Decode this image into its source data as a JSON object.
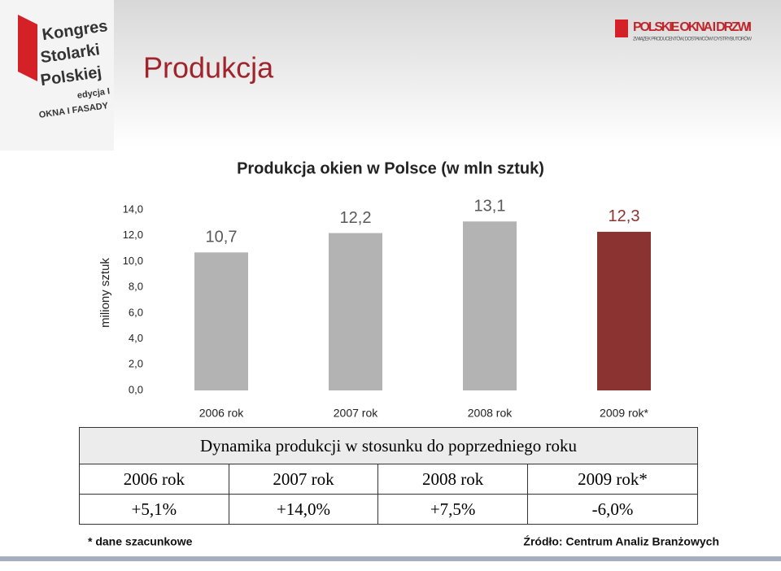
{
  "header": {
    "title": "Produkcja",
    "logo_left": [
      "Kongres",
      "Stolarki",
      "Polskiej",
      "edycja I",
      "OKNA I FASADY"
    ],
    "logo_right": [
      "POLSKIE OKNA I DRZWI",
      "ZWIĄZEK PRODUCENTÓW, DOSTAWCÓW I DYSTRYBUTORÓW"
    ]
  },
  "chart_data": {
    "type": "bar",
    "title": "Produkcja okien w Polsce (w mln sztuk)",
    "y_label": "miliony sztuk",
    "categories": [
      "2006 rok",
      "2007 rok",
      "2008 rok",
      "2009 rok*"
    ],
    "values": [
      10.7,
      12.2,
      13.1,
      12.3
    ],
    "value_labels": [
      "10,7",
      "12,2",
      "13,1",
      "12,3"
    ],
    "colors": [
      "#b3b3b3",
      "#b3b3b3",
      "#b3b3b3",
      "#8b3330"
    ],
    "ylim": [
      0,
      14
    ],
    "yticks": [
      {
        "value": 0,
        "label": "0,0"
      },
      {
        "value": 2,
        "label": "2,0"
      },
      {
        "value": 4,
        "label": "4,0"
      },
      {
        "value": 6,
        "label": "6,0"
      },
      {
        "value": 8,
        "label": "8,0"
      },
      {
        "value": 10,
        "label": "10,0"
      },
      {
        "value": 12,
        "label": "12,0"
      },
      {
        "value": 14,
        "label": "14,0"
      }
    ],
    "grid": false
  },
  "table": {
    "title": "Dynamika produkcji w stosunku do poprzedniego roku",
    "rows": [
      [
        "2006 rok",
        "2007 rok",
        "2008 rok",
        "2009 rok*"
      ],
      [
        "+5,1%",
        "+14,0%",
        "+7,5%",
        "-6,0%"
      ]
    ]
  },
  "footer": {
    "note": "* dane szacunkowe",
    "source": "Źródło: Centrum Analiz Branżowych"
  }
}
